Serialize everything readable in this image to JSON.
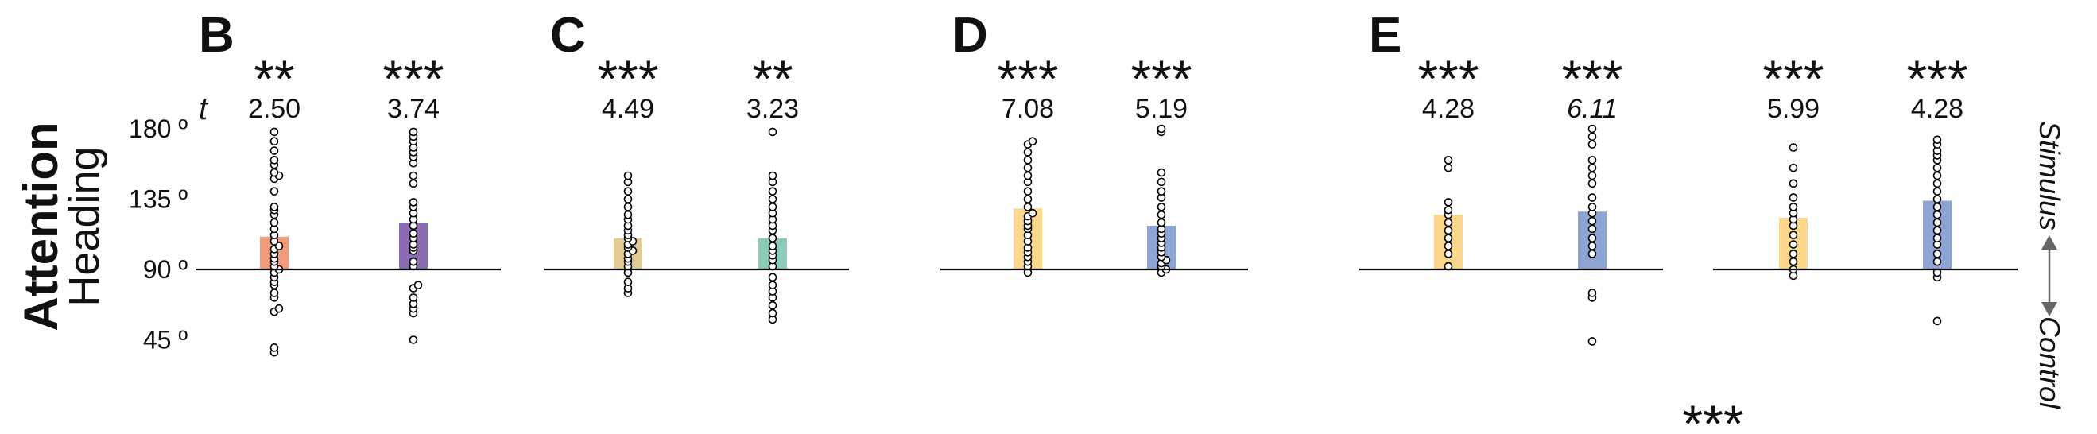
{
  "figure": {
    "ylabel_main": "Attention",
    "ylabel_sub": "Heading",
    "t_label": "t",
    "right_label_top": "Stimulus",
    "right_label_bottom": "Control",
    "orphan_stars": "***",
    "yticks": [
      {
        "value": 180,
        "label": "180 º"
      },
      {
        "value": 135,
        "label": "135 º"
      },
      {
        "value": 90,
        "label": "90 º"
      },
      {
        "value": 45,
        "label": "45 º"
      }
    ]
  },
  "chart_data": {
    "type": "bar",
    "ylim": [
      25,
      185
    ],
    "baseline": 90,
    "panels": [
      {
        "letter": "B",
        "bars": [
          {
            "stars": "**",
            "t": "2.50",
            "value": 111,
            "color": "#ef9b7c",
            "points": [
              37,
              40,
              63,
              65,
              72,
              75,
              80,
              82,
              85,
              88,
              90,
              92,
              95,
              97,
              100,
              103,
              105,
              108,
              112,
              116,
              120,
              125,
              128,
              130,
              140,
              148,
              150,
              152,
              157,
              160,
              166,
              172,
              178
            ]
          },
          {
            "stars": "***",
            "t": "3.74",
            "value": 120,
            "color": "#8a6cb0",
            "points": [
              45,
              62,
              65,
              68,
              72,
              78,
              80,
              92,
              95,
              102,
              104,
              106,
              110,
              113,
              118,
              122,
              126,
              130,
              133,
              145,
              150,
              158,
              162,
              165,
              168,
              172,
              175,
              178
            ]
          }
        ]
      },
      {
        "letter": "C",
        "bars": [
          {
            "stars": "***",
            "t": "4.49",
            "value": 110,
            "color": "#e2cc94",
            "points": [
              75,
              78,
              82,
              88,
              92,
              95,
              97,
              100,
              102,
              104,
              106,
              108,
              110,
              112,
              115,
              118,
              122,
              125,
              130,
              135,
              140,
              146,
              150
            ]
          },
          {
            "stars": "**",
            "t": "3.23",
            "value": 110,
            "color": "#8ecab9",
            "points": [
              58,
              62,
              67,
              72,
              76,
              80,
              85,
              92,
              96,
              99,
              102,
              105,
              110,
              115,
              118,
              122,
              126,
              130,
              135,
              140,
              146,
              150,
              178
            ]
          }
        ]
      },
      {
        "letter": "D",
        "bars": [
          {
            "stars": "***",
            "t": "7.08",
            "value": 129,
            "color": "#fdd78c",
            "points": [
              88,
              92,
              95,
              98,
              101,
              104,
              108,
              112,
              116,
              118,
              121,
              124,
              126,
              130,
              135,
              140,
              146,
              150,
              155,
              160,
              165,
              170,
              172
            ]
          },
          {
            "stars": "***",
            "t": "5.19",
            "value": 118,
            "color": "#8ea4d2",
            "points": [
              88,
              90,
              92,
              94,
              96,
              98,
              101,
              104,
              107,
              110,
              113,
              116,
              120,
              125,
              130,
              136,
              140,
              146,
              152,
              178,
              180
            ]
          }
        ]
      },
      {
        "letter": "E",
        "bars": [
          {
            "stars": "***",
            "t": "4.28",
            "value": 125,
            "color": "#fdd78c",
            "points": [
              92,
              100,
              105,
              110,
              115,
              120,
              125,
              128,
              133,
              155,
              160
            ]
          },
          {
            "stars": "***",
            "t": "6.11",
            "t_italic": true,
            "value": 127,
            "color": "#8ea4d2",
            "points": [
              44,
              72,
              75,
              100,
              105,
              110,
              116,
              121,
              126,
              130,
              136,
              145,
              150,
              155,
              160,
              170,
              175,
              180
            ]
          }
        ]
      },
      {
        "letter": "",
        "bars": [
          {
            "stars": "***",
            "t": "5.99",
            "value": 123,
            "color": "#fdd78c",
            "points": [
              86,
              90,
              95,
              100,
              106,
              112,
              118,
              122,
              126,
              130,
              136,
              145,
              155,
              168
            ]
          },
          {
            "stars": "***",
            "t": "4.28",
            "value": 134,
            "color": "#8ea4d2",
            "points": [
              57,
              85,
              88,
              95,
              100,
              106,
              110,
              115,
              120,
              125,
              130,
              135,
              140,
              145,
              150,
              155,
              160,
              163,
              166,
              170,
              173
            ]
          }
        ]
      }
    ]
  }
}
